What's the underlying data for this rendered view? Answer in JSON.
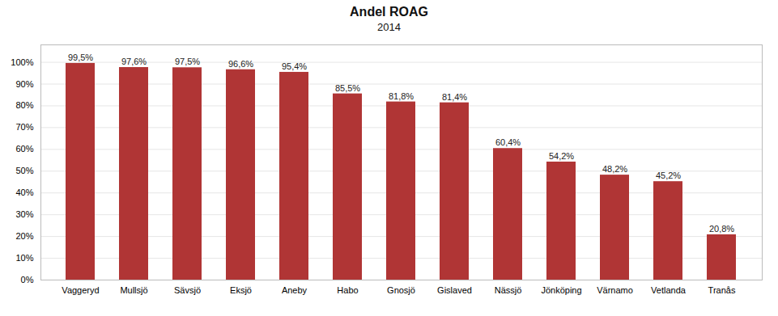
{
  "chart_data": {
    "type": "bar",
    "title": "Andel ROAG",
    "subtitle": "2014",
    "categories": [
      "Vaggeryd",
      "Mullsjö",
      "Sävsjö",
      "Eksjö",
      "Aneby",
      "Habo",
      "Gnosjö",
      "Gislaved",
      "Nässjö",
      "Jönköping",
      "Värnamo",
      "Vetlanda",
      "Tranås"
    ],
    "values": [
      99.5,
      97.6,
      97.5,
      96.6,
      95.4,
      85.5,
      81.8,
      81.4,
      60.4,
      54.2,
      48.2,
      45.2,
      20.8
    ],
    "value_labels": [
      "99,5%",
      "97,6%",
      "97,5%",
      "96,6%",
      "95,4%",
      "85,5%",
      "81,8%",
      "81,4%",
      "60,4%",
      "54,2%",
      "48,2%",
      "45,2%",
      "20,8%"
    ],
    "color": "#b03535",
    "ylim": [
      0,
      108
    ],
    "yticks": [
      {
        "value": 0,
        "label": "0%"
      },
      {
        "value": 10,
        "label": "10%"
      },
      {
        "value": 20,
        "label": "20%"
      },
      {
        "value": 30,
        "label": "30%"
      },
      {
        "value": 40,
        "label": "40%"
      },
      {
        "value": 50,
        "label": "50%"
      },
      {
        "value": 60,
        "label": "60%"
      },
      {
        "value": 70,
        "label": "70%"
      },
      {
        "value": 80,
        "label": "80%"
      },
      {
        "value": 90,
        "label": "90%"
      },
      {
        "value": 100,
        "label": "100%"
      }
    ],
    "grid": true,
    "data_labels": true
  }
}
